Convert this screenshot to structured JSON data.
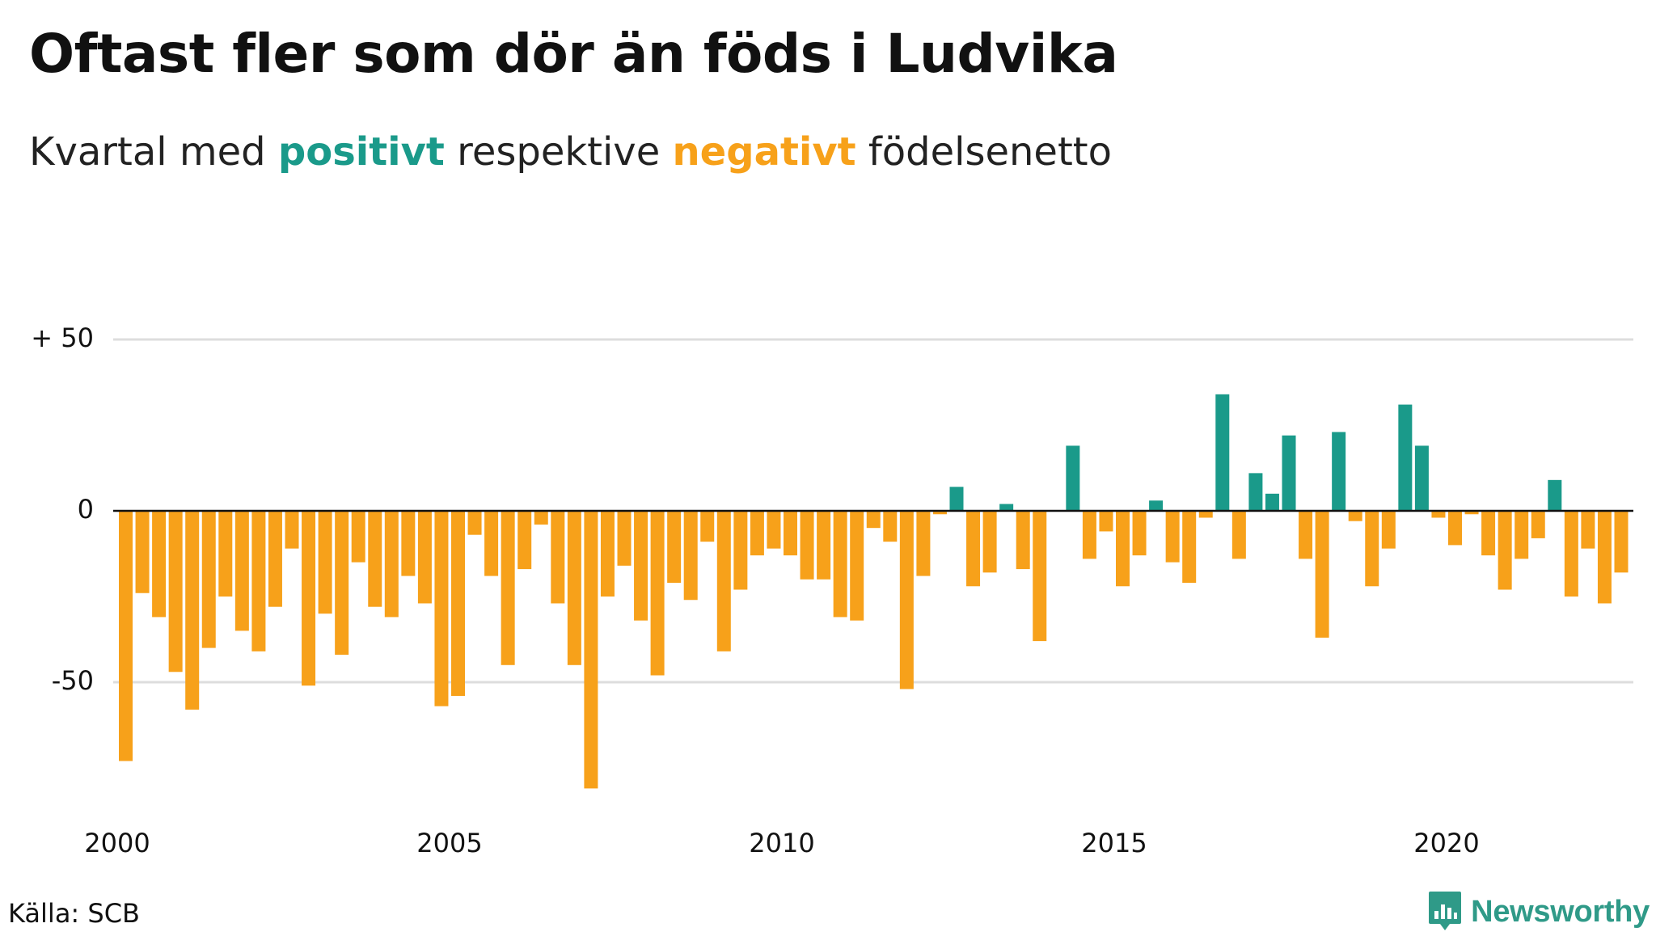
{
  "header": {
    "title": "Oftast fler som dör än föds i Ludvika",
    "subtitle_pre": "Kvartal med ",
    "subtitle_positive": "positivt",
    "subtitle_mid": " respektive ",
    "subtitle_negative": "negativt",
    "subtitle_post": " födelsenetto"
  },
  "footer": {
    "source": "Källa: SCB",
    "brand": "Newsworthy",
    "brand_icon": "newsworthy-logo-icon"
  },
  "colors": {
    "positive": "#1a9a8a",
    "negative": "#f7a11a",
    "grid": "#dddddd",
    "zero_line": "#111111",
    "brand": "#2f9a88"
  },
  "chart_data": {
    "type": "bar",
    "title": "Oftast fler som dör än föds i Ludvika",
    "subtitle": "Kvartal med positivt respektive negativt födelsenetto",
    "xlabel": "",
    "ylabel": "",
    "x_ticks": [
      "2000",
      "2005",
      "2010",
      "2015",
      "2020"
    ],
    "y_ticks": [
      {
        "value": 50,
        "label": "+ 50"
      },
      {
        "value": 0,
        "label": "0"
      },
      {
        "value": -50,
        "label": "-50"
      }
    ],
    "ylim": [
      -85,
      55
    ],
    "grid": true,
    "start_year": 2000,
    "periods_per_year": 4,
    "series": [
      {
        "values": [
          -73,
          -24,
          -31,
          -47,
          -58,
          -40,
          -25,
          -35,
          -41,
          -28,
          -11,
          -51,
          -30,
          -42,
          -15,
          -28,
          -31,
          -19,
          -27,
          -57,
          -54,
          -7,
          -19,
          -45,
          -17,
          -4,
          -27,
          -45,
          -81,
          -25,
          -16,
          -32,
          -48,
          -21,
          -26,
          -9,
          -41,
          -23,
          -13,
          -11,
          -13,
          -20,
          -20,
          -31,
          -32,
          -5,
          -9,
          -52,
          -19,
          -1,
          7,
          -22,
          -18,
          2,
          -17,
          -38,
          0,
          19,
          -14,
          -6,
          -22,
          -13,
          3,
          -15,
          -21,
          -2,
          34,
          -14,
          11,
          5,
          22,
          -14,
          -37,
          23,
          -3,
          -22,
          -11,
          31,
          19,
          -2,
          -10,
          -1,
          -13,
          -23,
          -14,
          -8,
          9,
          -25,
          -11,
          -27,
          -18
        ]
      }
    ]
  }
}
